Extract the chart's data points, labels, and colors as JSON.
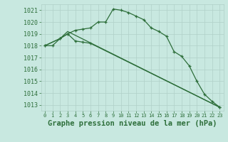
{
  "background_color": "#c8e8e0",
  "grid_color": "#b0d0c8",
  "line_color": "#2d6e3a",
  "title": "Graphe pression niveau de la mer (hPa)",
  "xlim": [
    -0.5,
    23.5
  ],
  "ylim": [
    1012.5,
    1021.5
  ],
  "yticks": [
    1013,
    1014,
    1015,
    1016,
    1017,
    1018,
    1019,
    1020,
    1021
  ],
  "xticks": [
    0,
    1,
    2,
    3,
    4,
    5,
    6,
    7,
    8,
    9,
    10,
    11,
    12,
    13,
    14,
    15,
    16,
    17,
    18,
    19,
    20,
    21,
    22,
    23
  ],
  "series": [
    {
      "x": [
        0,
        1,
        2,
        3,
        4,
        5,
        6,
        7,
        8,
        9,
        10,
        11,
        12,
        13,
        14,
        15,
        16,
        17,
        18,
        19,
        20,
        21,
        22,
        23
      ],
      "y": [
        1018.0,
        1018.0,
        1018.6,
        1019.0,
        1019.3,
        1019.4,
        1019.5,
        1020.0,
        1020.0,
        1021.1,
        1021.0,
        1020.8,
        1020.5,
        1020.2,
        1019.5,
        1019.2,
        1018.8,
        1017.5,
        1017.1,
        1016.3,
        1015.0,
        1013.9,
        1013.3,
        1012.8
      ],
      "marker": true
    },
    {
      "x": [
        0,
        2,
        3,
        4,
        5,
        6,
        23
      ],
      "y": [
        1018.0,
        1018.6,
        1019.0,
        1018.4,
        1018.3,
        1018.2,
        1012.8
      ],
      "marker": true
    },
    {
      "x": [
        0,
        2,
        3,
        23
      ],
      "y": [
        1018.0,
        1018.6,
        1019.2,
        1012.8
      ],
      "marker": false
    }
  ],
  "title_fontsize": 7.5,
  "tick_fontsize": 6,
  "xtick_fontsize": 5,
  "title_color": "#2d6e3a",
  "tick_color": "#2d6e3a",
  "lw": 0.9,
  "marker_size": 3.5
}
